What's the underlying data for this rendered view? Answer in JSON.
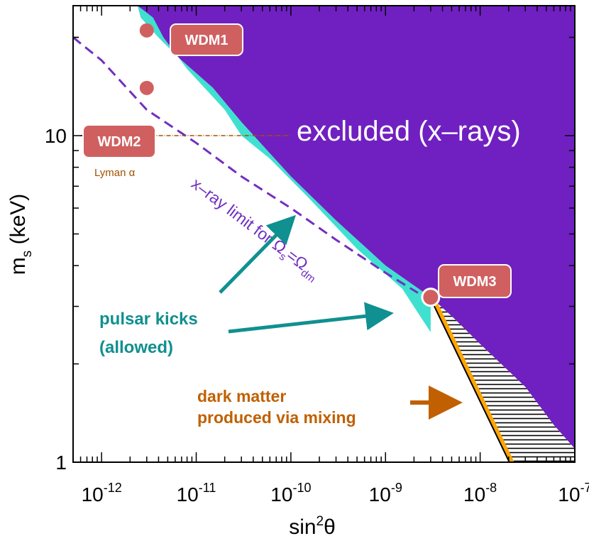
{
  "chart_data": {
    "type": "region-plot",
    "xscale": "log",
    "yscale": "log",
    "xlim": [
      5e-13,
      1e-07
    ],
    "ylim": [
      1,
      25
    ],
    "xlabel": {
      "base": "sin",
      "sup": "2",
      "tail": "θ"
    },
    "ylabel": {
      "base": "m",
      "sub": "s",
      "tail": " (keV)"
    },
    "x_ticks": [
      {
        "value": 1e-12,
        "base": "10",
        "exp": "-12"
      },
      {
        "value": 1e-11,
        "base": "10",
        "exp": "-11"
      },
      {
        "value": 1e-10,
        "base": "10",
        "exp": "-10"
      },
      {
        "value": 1e-09,
        "base": "10",
        "exp": "-9"
      },
      {
        "value": 1e-08,
        "base": "10",
        "exp": "-8"
      },
      {
        "value": 1e-07,
        "base": "10",
        "exp": "-7"
      }
    ],
    "y_ticks": [
      {
        "value": 1,
        "label": "1"
      },
      {
        "value": 10,
        "label": "10"
      }
    ],
    "regions": {
      "excluded": {
        "name": "excluded (x-rays)",
        "color": "#7020c0",
        "boundary": [
          [
            2.4e-12,
            25
          ],
          [
            2.6e-12,
            23
          ],
          [
            4e-12,
            20
          ],
          [
            7e-12,
            17
          ],
          [
            1.5e-11,
            14
          ],
          [
            3e-11,
            11
          ],
          [
            1e-10,
            7.5
          ],
          [
            3e-10,
            5.5
          ],
          [
            1e-09,
            4
          ],
          [
            3e-09,
            3.2
          ],
          [
            5e-09,
            2.8
          ],
          [
            1e-08,
            2.3
          ],
          [
            3e-08,
            1.7
          ],
          [
            6e-08,
            1.3
          ],
          [
            1e-07,
            1.1
          ]
        ]
      },
      "pulsar": {
        "name": "pulsar kicks (allowed)",
        "color": "#40e0d0",
        "boundary": [
          [
            3.5e-12,
            23
          ],
          [
            4.5e-12,
            20
          ],
          [
            8e-12,
            16
          ],
          [
            2e-11,
            12
          ],
          [
            3e-11,
            10
          ],
          [
            6e-11,
            8.5
          ],
          [
            1.5e-10,
            6.5
          ],
          [
            5e-10,
            4.5
          ],
          [
            1.5e-09,
            3.4
          ],
          [
            3e-09,
            2.5
          ]
        ]
      },
      "hatched": {
        "color": "#000000"
      },
      "mixing_band": {
        "name": "dark matter produced via mixing",
        "color": "#ffa500"
      }
    },
    "xray_limit_line": {
      "label": "x–ray limit  for ",
      "omega_label": "Ω",
      "omega_sub_s": "s",
      "omega_sub_dm": "dm",
      "color": "#7030c0",
      "points": [
        [
          5e-13,
          20
        ],
        [
          1e-12,
          17
        ],
        [
          3e-12,
          12
        ],
        [
          1e-11,
          9.5
        ],
        [
          3e-11,
          7.5
        ],
        [
          1e-10,
          6.0
        ],
        [
          3e-10,
          4.8
        ],
        [
          1e-09,
          3.8
        ],
        [
          2.2e-09,
          3.3
        ]
      ]
    },
    "lyman_alpha": {
      "label": "Lyman α",
      "y": 10,
      "x_range": [
        6e-13,
        1e-10
      ],
      "color": "#a05000"
    },
    "points": [
      {
        "name": "WDM1",
        "x": 3e-12,
        "y": 21
      },
      {
        "name": "WDM2",
        "x": 3e-12,
        "y": 14
      },
      {
        "name": "WDM3",
        "x": 3e-09,
        "y": 3.2
      }
    ],
    "annotations": {
      "pulsar_line1": "pulsar kicks",
      "pulsar_line2": "(allowed)",
      "dm_line1": "dark matter",
      "dm_line2": "produced via mixing",
      "excluded_label": "excluded (x–rays)"
    },
    "colors": {
      "excluded": "#7020c0",
      "pulsar": "#40e0d0",
      "point": "#d06060",
      "arrow_teal": "#109090",
      "arrow_orange": "#c06000",
      "label_teal": "#108f8f",
      "label_orange": "#c06000"
    }
  }
}
